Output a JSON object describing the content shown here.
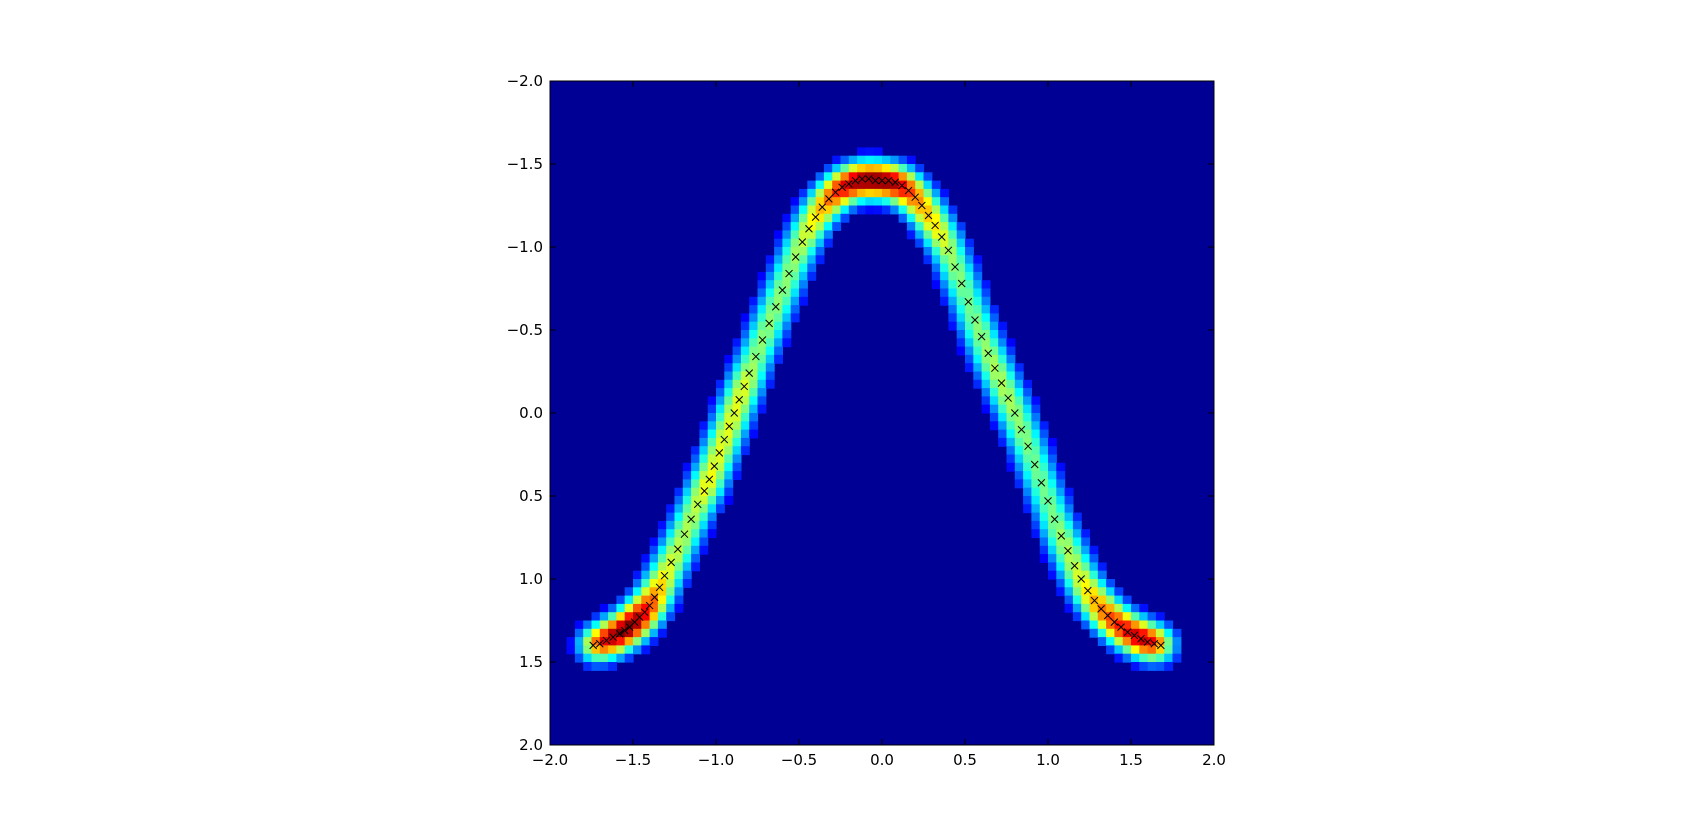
{
  "chart_data": {
    "type": "heatmap",
    "title": "",
    "xlabel": "",
    "ylabel": "",
    "xlim": [
      -2.0,
      2.0
    ],
    "ylim": [
      -2.0,
      2.0
    ],
    "y_inverted": true,
    "grid": false,
    "colormap": "jet",
    "x_ticks": [
      -2.0,
      -1.5,
      -1.0,
      -0.5,
      0.0,
      0.5,
      1.0,
      1.5,
      2.0
    ],
    "x_tick_labels": [
      "−2.0",
      "−1.5",
      "−1.0",
      "−0.5",
      "0.0",
      "0.5",
      "1.0",
      "1.5",
      "2.0"
    ],
    "y_ticks": [
      -2.0,
      -1.5,
      -1.0,
      -0.5,
      0.0,
      0.5,
      1.0,
      1.5,
      2.0
    ],
    "y_tick_labels": [
      "−2.0",
      "−1.5",
      "−1.0",
      "−0.5",
      "0.0",
      "0.5",
      "1.0",
      "1.5",
      "2.0"
    ],
    "marker_series": {
      "marker": "x",
      "color": "#000000",
      "x": [
        -1.74,
        -1.7,
        -1.66,
        -1.62,
        -1.58,
        -1.55,
        -1.52,
        -1.49,
        -1.46,
        -1.43,
        -1.4,
        -1.37,
        -1.34,
        -1.31,
        -1.27,
        -1.23,
        -1.19,
        -1.15,
        -1.11,
        -1.07,
        -1.04,
        -1.01,
        -0.98,
        -0.95,
        -0.92,
        -0.89,
        -0.86,
        -0.83,
        -0.8,
        -0.76,
        -0.72,
        -0.68,
        -0.64,
        -0.6,
        -0.56,
        -0.52,
        -0.48,
        -0.44,
        -0.4,
        -0.36,
        -0.32,
        -0.28,
        -0.24,
        -0.2,
        -0.16,
        -0.12,
        -0.08,
        -0.04,
        0.0,
        0.04,
        0.08,
        0.12,
        0.16,
        0.2,
        0.24,
        0.28,
        0.32,
        0.36,
        0.4,
        0.44,
        0.48,
        0.52,
        0.56,
        0.6,
        0.64,
        0.68,
        0.72,
        0.76,
        0.8,
        0.84,
        0.88,
        0.92,
        0.96,
        1.0,
        1.04,
        1.08,
        1.12,
        1.16,
        1.2,
        1.24,
        1.28,
        1.32,
        1.36,
        1.4,
        1.44,
        1.48,
        1.52,
        1.56,
        1.6,
        1.64,
        1.68
      ],
      "y": [
        1.4,
        1.39,
        1.37,
        1.35,
        1.33,
        1.31,
        1.29,
        1.26,
        1.23,
        1.2,
        1.16,
        1.11,
        1.05,
        0.98,
        0.9,
        0.82,
        0.73,
        0.64,
        0.55,
        0.47,
        0.4,
        0.32,
        0.24,
        0.16,
        0.08,
        0.0,
        -0.08,
        -0.16,
        -0.24,
        -0.34,
        -0.44,
        -0.54,
        -0.64,
        -0.74,
        -0.84,
        -0.94,
        -1.03,
        -1.11,
        -1.18,
        -1.24,
        -1.29,
        -1.33,
        -1.36,
        -1.38,
        -1.4,
        -1.41,
        -1.41,
        -1.4,
        -1.4,
        -1.4,
        -1.39,
        -1.37,
        -1.34,
        -1.3,
        -1.25,
        -1.19,
        -1.13,
        -1.06,
        -0.98,
        -0.88,
        -0.78,
        -0.67,
        -0.56,
        -0.46,
        -0.36,
        -0.27,
        -0.18,
        -0.09,
        0.0,
        0.1,
        0.2,
        0.31,
        0.42,
        0.53,
        0.64,
        0.74,
        0.83,
        0.92,
        1.0,
        1.07,
        1.13,
        1.18,
        1.22,
        1.26,
        1.29,
        1.32,
        1.34,
        1.36,
        1.38,
        1.39,
        1.4
      ]
    }
  }
}
